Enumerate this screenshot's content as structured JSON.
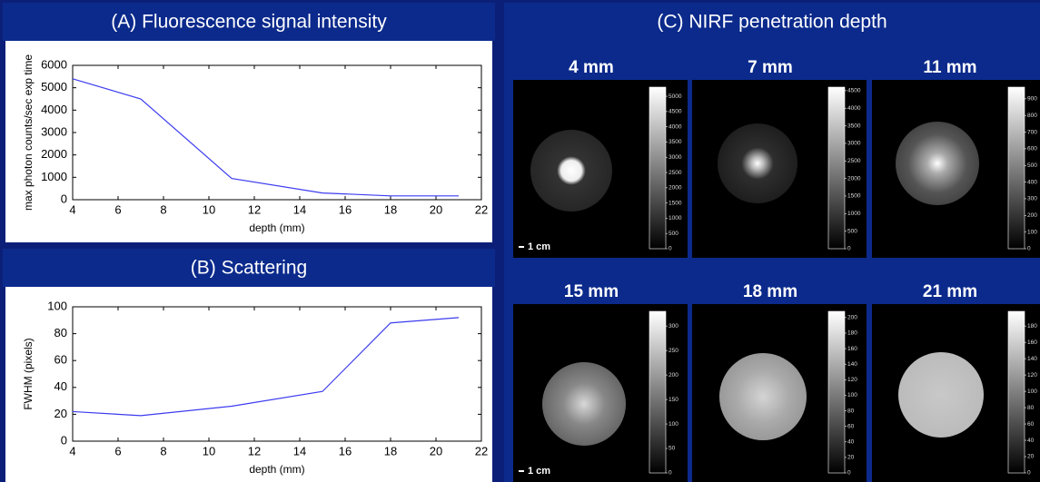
{
  "chart_data": [
    {
      "type": "line",
      "title": "(A) Fluorescence signal intensity",
      "x_label": "depth (mm)",
      "y_label": "max photon counts/sec exp time",
      "x": [
        4,
        7,
        11,
        15,
        18,
        21
      ],
      "values": [
        5400,
        4500,
        950,
        300,
        170,
        170
      ],
      "color": "#3c3cf0",
      "xlim": [
        4,
        22
      ],
      "xticks": [
        4,
        6,
        8,
        10,
        12,
        14,
        16,
        18,
        20,
        22
      ],
      "ylim": [
        0,
        6000
      ],
      "yticks": [
        0,
        1000,
        2000,
        3000,
        4000,
        5000,
        6000
      ]
    },
    {
      "type": "line",
      "title": "(B) Scattering",
      "x_label": "depth (mm)",
      "y_label": "FWHM (pixels)",
      "x": [
        4,
        7,
        11,
        15,
        18,
        21
      ],
      "values": [
        22,
        19,
        26,
        37,
        88,
        92
      ],
      "color": "#3c3cf0",
      "xlim": [
        4,
        22
      ],
      "xticks": [
        4,
        6,
        8,
        10,
        12,
        14,
        16,
        18,
        20,
        22
      ],
      "ylim": [
        0,
        100
      ],
      "yticks": [
        0,
        20,
        40,
        60,
        80,
        100
      ]
    }
  ],
  "panel_c": {
    "title": "(C) NIRF penetration depth",
    "images": [
      {
        "label": "4 mm",
        "clim": [
          0,
          5300
        ],
        "ticks": [
          0,
          500,
          1000,
          1500,
          2000,
          2500,
          3000,
          3500,
          4000,
          4500,
          5000
        ],
        "scale_bar": "1 cm"
      },
      {
        "label": "7 mm",
        "clim": [
          0,
          4600
        ],
        "ticks": [
          0,
          500,
          1000,
          1500,
          2000,
          2500,
          3000,
          3500,
          4000,
          4500
        ]
      },
      {
        "label": "11 mm",
        "clim": [
          0,
          970
        ],
        "ticks": [
          0,
          100,
          200,
          300,
          400,
          500,
          600,
          700,
          800,
          900
        ]
      },
      {
        "label": "15 mm",
        "clim": [
          0,
          330
        ],
        "ticks": [
          0,
          50,
          100,
          150,
          200,
          250,
          300
        ],
        "scale_bar": "1 cm"
      },
      {
        "label": "18 mm",
        "clim": [
          0,
          208
        ],
        "ticks": [
          0,
          20,
          40,
          60,
          80,
          100,
          120,
          140,
          160,
          180,
          200
        ]
      },
      {
        "label": "21 mm",
        "clim": [
          0,
          198
        ],
        "ticks": [
          0,
          20,
          40,
          60,
          80,
          100,
          120,
          140,
          160,
          180
        ]
      }
    ]
  }
}
